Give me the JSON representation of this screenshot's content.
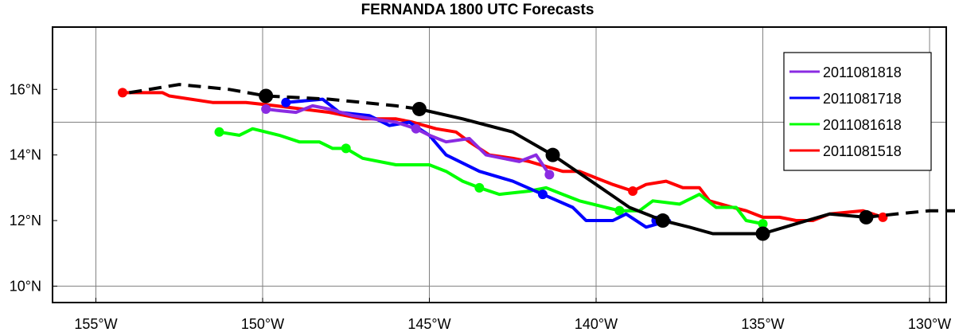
{
  "chart_data": {
    "type": "line",
    "title": "FERNANDA 1800 UTC Forecasts",
    "xlabel": "",
    "ylabel": "",
    "xlim": [
      -156.3,
      -129.5
    ],
    "ylim": [
      9.5,
      17.9
    ],
    "grid": true,
    "legend_position": "top-right",
    "x_ticks": [
      {
        "value": -155,
        "label": "155°W"
      },
      {
        "value": -150,
        "label": "150°W"
      },
      {
        "value": -145,
        "label": "145°W"
      },
      {
        "value": -140,
        "label": "140°W"
      },
      {
        "value": -135,
        "label": "135°W"
      },
      {
        "value": -130,
        "label": "130°W"
      }
    ],
    "y_ticks": [
      {
        "value": 10,
        "label": "10°N"
      },
      {
        "value": 12,
        "label": "12°N"
      },
      {
        "value": 14,
        "label": "14°N"
      },
      {
        "value": 16,
        "label": "16°N"
      }
    ],
    "grid_x": [
      -155,
      -150,
      -145,
      -140,
      -135,
      -130
    ],
    "grid_y": [
      10,
      15
    ],
    "best_track": {
      "color": "#000000",
      "dashed": [
        [
          -154.0,
          15.9
        ],
        [
          -152.5,
          16.15
        ],
        [
          -151.0,
          16.0
        ],
        [
          -149.9,
          15.8
        ],
        [
          -148.0,
          15.7
        ],
        [
          -147.0,
          15.6
        ],
        [
          -146.0,
          15.5
        ],
        [
          -145.3,
          15.4
        ]
      ],
      "solid": [
        [
          -145.3,
          15.4
        ],
        [
          -144.0,
          15.1
        ],
        [
          -142.5,
          14.7
        ],
        [
          -141.3,
          14.0
        ],
        [
          -140.0,
          13.1
        ],
        [
          -139.0,
          12.4
        ],
        [
          -138.0,
          12.0
        ],
        [
          -137.2,
          11.8
        ],
        [
          -136.5,
          11.6
        ],
        [
          -135.0,
          11.6
        ],
        [
          -134.0,
          11.9
        ],
        [
          -133.0,
          12.2
        ],
        [
          -131.9,
          12.1
        ]
      ],
      "dashed_end": [
        [
          -131.9,
          12.1
        ],
        [
          -131.0,
          12.2
        ],
        [
          -130.0,
          12.3
        ],
        [
          -129.2,
          12.3
        ]
      ],
      "markers": [
        [
          -149.9,
          15.8
        ],
        [
          -145.3,
          15.4
        ],
        [
          -141.3,
          14.0
        ],
        [
          -138.0,
          12.0
        ],
        [
          -135.0,
          11.6
        ],
        [
          -131.9,
          12.1
        ]
      ]
    },
    "series": [
      {
        "name": "2011081818",
        "color": "#8a2be2",
        "points": [
          [
            -149.9,
            15.4
          ],
          [
            -149.5,
            15.35
          ],
          [
            -149.0,
            15.3
          ],
          [
            -148.5,
            15.5
          ],
          [
            -148.0,
            15.4
          ],
          [
            -147.3,
            15.2
          ],
          [
            -146.7,
            15.1
          ],
          [
            -146.0,
            15.0
          ],
          [
            -145.4,
            14.8
          ],
          [
            -145.0,
            14.6
          ],
          [
            -144.5,
            14.4
          ],
          [
            -143.8,
            14.5
          ],
          [
            -143.3,
            14.0
          ],
          [
            -142.8,
            13.9
          ],
          [
            -142.3,
            13.8
          ],
          [
            -141.8,
            14.0
          ],
          [
            -141.4,
            13.4
          ]
        ],
        "markers": [
          [
            -149.9,
            15.4
          ],
          [
            -145.4,
            14.8
          ],
          [
            -141.4,
            13.4
          ]
        ]
      },
      {
        "name": "2011081718",
        "color": "#0000ff",
        "points": [
          [
            -149.3,
            15.6
          ],
          [
            -148.2,
            15.7
          ],
          [
            -147.7,
            15.3
          ],
          [
            -146.8,
            15.2
          ],
          [
            -146.2,
            14.9
          ],
          [
            -145.6,
            15.0
          ],
          [
            -145.0,
            14.6
          ],
          [
            -144.5,
            14.0
          ],
          [
            -143.5,
            13.5
          ],
          [
            -142.5,
            13.2
          ],
          [
            -141.6,
            12.8
          ],
          [
            -140.7,
            12.4
          ],
          [
            -140.3,
            12.0
          ],
          [
            -139.5,
            12.0
          ],
          [
            -139.1,
            12.2
          ],
          [
            -138.5,
            11.8
          ],
          [
            -137.8,
            12.0
          ],
          [
            -138.2,
            12.0
          ]
        ],
        "markers": [
          [
            -149.3,
            15.6
          ],
          [
            -141.6,
            12.8
          ],
          [
            -138.2,
            12.0
          ]
        ]
      },
      {
        "name": "2011081618",
        "color": "#00ff00",
        "points": [
          [
            -151.3,
            14.7
          ],
          [
            -150.7,
            14.6
          ],
          [
            -150.3,
            14.8
          ],
          [
            -149.5,
            14.6
          ],
          [
            -148.9,
            14.4
          ],
          [
            -148.3,
            14.4
          ],
          [
            -147.9,
            14.2
          ],
          [
            -147.5,
            14.2
          ],
          [
            -147.0,
            13.9
          ],
          [
            -146.0,
            13.7
          ],
          [
            -145.0,
            13.7
          ],
          [
            -144.5,
            13.5
          ],
          [
            -144.0,
            13.2
          ],
          [
            -143.5,
            13.0
          ],
          [
            -142.9,
            12.8
          ],
          [
            -142.0,
            12.9
          ],
          [
            -141.5,
            13.0
          ],
          [
            -141.0,
            12.8
          ],
          [
            -140.5,
            12.6
          ],
          [
            -139.3,
            12.3
          ],
          [
            -138.7,
            12.3
          ],
          [
            -138.3,
            12.6
          ],
          [
            -137.5,
            12.5
          ],
          [
            -136.9,
            12.8
          ],
          [
            -136.4,
            12.4
          ],
          [
            -135.8,
            12.4
          ],
          [
            -135.5,
            12.0
          ],
          [
            -135.0,
            11.9
          ]
        ],
        "markers": [
          [
            -151.3,
            14.7
          ],
          [
            -147.5,
            14.2
          ],
          [
            -143.5,
            13.0
          ],
          [
            -139.3,
            12.3
          ],
          [
            -135.0,
            11.9
          ]
        ]
      },
      {
        "name": "2011081518",
        "color": "#ff0000",
        "points": [
          [
            -154.2,
            15.9
          ],
          [
            -153.0,
            15.9
          ],
          [
            -152.8,
            15.8
          ],
          [
            -151.5,
            15.6
          ],
          [
            -150.5,
            15.6
          ],
          [
            -149.6,
            15.5
          ],
          [
            -148.8,
            15.4
          ],
          [
            -148.0,
            15.3
          ],
          [
            -147.0,
            15.1
          ],
          [
            -146.0,
            15.1
          ],
          [
            -145.5,
            15.0
          ],
          [
            -144.8,
            14.8
          ],
          [
            -144.2,
            14.7
          ],
          [
            -143.8,
            14.4
          ],
          [
            -143.2,
            14.0
          ],
          [
            -142.5,
            13.9
          ],
          [
            -142.0,
            13.8
          ],
          [
            -141.0,
            13.5
          ],
          [
            -140.5,
            13.5
          ],
          [
            -140.0,
            13.3
          ],
          [
            -139.5,
            13.1
          ],
          [
            -138.9,
            12.9
          ],
          [
            -138.5,
            13.1
          ],
          [
            -137.9,
            13.2
          ],
          [
            -137.4,
            13.0
          ],
          [
            -136.9,
            13.0
          ],
          [
            -136.6,
            12.6
          ],
          [
            -135.9,
            12.4
          ],
          [
            -135.5,
            12.3
          ],
          [
            -135.0,
            12.1
          ],
          [
            -134.5,
            12.1
          ],
          [
            -134.0,
            12.0
          ],
          [
            -133.5,
            12.0
          ],
          [
            -133.0,
            12.2
          ],
          [
            -132.0,
            12.3
          ],
          [
            -131.4,
            12.1
          ]
        ],
        "markers": [
          [
            -154.2,
            15.9
          ],
          [
            -138.9,
            12.9
          ],
          [
            -131.4,
            12.1
          ]
        ]
      }
    ]
  }
}
